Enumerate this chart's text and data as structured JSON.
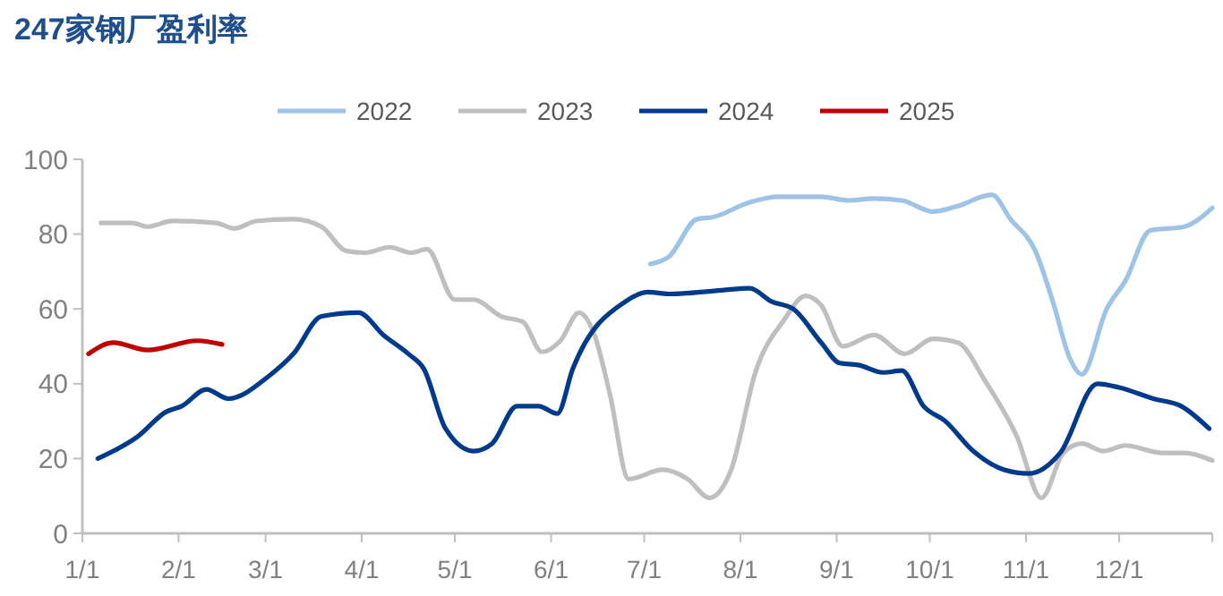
{
  "chart_data": {
    "type": "line",
    "title": "247家钢厂盈利率",
    "xlim": [
      "--01-01",
      "--12-31"
    ],
    "xticks": [
      {
        "value": "--01-01",
        "label": "1/1"
      },
      {
        "value": "--02-01",
        "label": "2/1"
      },
      {
        "value": "--03-01",
        "label": "3/1"
      },
      {
        "value": "--04-01",
        "label": "4/1"
      },
      {
        "value": "--05-01",
        "label": "5/1"
      },
      {
        "value": "--06-01",
        "label": "6/1"
      },
      {
        "value": "--07-01",
        "label": "7/1"
      },
      {
        "value": "--08-01",
        "label": "8/1"
      },
      {
        "value": "--09-01",
        "label": "9/1"
      },
      {
        "value": "--10-01",
        "label": "10/1"
      },
      {
        "value": "--11-01",
        "label": "11/1"
      },
      {
        "value": "--12-01",
        "label": "12/1"
      }
    ],
    "ylim": [
      0,
      100
    ],
    "yticks": [
      0,
      20,
      40,
      60,
      80,
      100
    ],
    "grid": false,
    "legend": "top",
    "marker": "none",
    "line_style": "solid",
    "series": [
      {
        "name": "2022",
        "color": "#9dc3e6",
        "x": [
          "--07-03",
          "--07-09",
          "--07-18",
          "--07-23",
          "--08-04",
          "--08-13",
          "--08-27",
          "--09-05",
          "--09-13",
          "--09-22",
          "--10-02",
          "--10-10",
          "--10-21",
          "--10-27",
          "--11-04",
          "--11-10",
          "--11-15",
          "--11-19",
          "--11-27",
          "--12-03",
          "--12-11",
          "--12-22",
          "--12-31"
        ],
        "values": [
          72,
          74,
          84,
          84.5,
          88.5,
          90,
          90,
          89,
          89.5,
          89,
          86,
          87.5,
          90.5,
          84,
          75.5,
          61,
          47,
          42.5,
          60,
          67.5,
          81,
          82,
          87
        ]
      },
      {
        "name": "2023",
        "color": "#bfbfbf",
        "x": [
          "--01-07",
          "--01-17",
          "--01-22",
          "--01-30",
          "--02-13",
          "--02-19",
          "--02-26",
          "--03-10",
          "--03-19",
          "--03-27",
          "--04-02",
          "--04-10",
          "--04-17",
          "--04-22",
          "--05-01",
          "--05-07",
          "--05-16",
          "--05-23",
          "--05-29",
          "--06-04",
          "--06-10",
          "--06-15",
          "--06-20",
          "--06-26",
          "--07-07",
          "--07-15",
          "--07-22",
          "--07-29",
          "--08-06",
          "--08-15",
          "--08-22",
          "--08-27",
          "--09-03",
          "--09-13",
          "--09-23",
          "--10-02",
          "--10-10",
          "--10-19",
          "--10-29",
          "--11-06",
          "--11-13",
          "--11-19",
          "--11-26",
          "--12-03",
          "--12-15",
          "--12-22",
          "--12-31"
        ],
        "values": [
          83,
          83,
          82,
          83.5,
          83,
          81.5,
          83.5,
          84,
          82,
          75.5,
          75,
          76.5,
          75,
          76,
          62.5,
          62.5,
          58,
          56.5,
          48.5,
          51.5,
          59,
          53,
          37,
          14.5,
          17,
          14.5,
          9.5,
          17,
          43.5,
          57,
          63.5,
          61,
          50,
          53,
          48,
          52,
          51,
          40.5,
          26,
          9.5,
          21.5,
          24,
          22,
          23.5,
          21.5,
          21.5,
          19.5
        ]
      },
      {
        "name": "2024",
        "color": "#003a8c",
        "x": [
          "--01-06",
          "--01-19",
          "--01-28",
          "--02-02",
          "--02-10",
          "--02-17",
          "--03-02",
          "--03-10",
          "--03-19",
          "--03-31",
          "--04-08",
          "--04-16",
          "--04-21",
          "--04-28",
          "--05-07",
          "--05-13",
          "--05-21",
          "--05-28",
          "--06-03",
          "--06-08",
          "--06-25",
          "--07-02",
          "--07-09",
          "--07-26",
          "--08-04",
          "--08-11",
          "--08-18",
          "--08-27",
          "--09-02",
          "--09-08",
          "--09-16",
          "--09-22",
          "--09-29",
          "--10-06",
          "--10-15",
          "--10-25",
          "--11-02",
          "--11-12",
          "--11-24",
          "--12-01",
          "--12-12",
          "--12-21",
          "--12-30"
        ],
        "values": [
          20,
          26,
          32.5,
          34,
          38.5,
          36,
          42,
          48,
          58,
          59,
          53,
          48,
          44,
          28,
          22,
          24,
          34,
          34,
          32,
          44,
          62,
          64.5,
          64,
          65,
          65.5,
          62,
          60,
          51,
          45.5,
          45,
          43,
          43.5,
          34,
          30,
          22,
          17,
          16,
          21.5,
          40,
          39,
          36,
          34,
          28
        ]
      },
      {
        "name": "2025",
        "color": "#c00000",
        "x": [
          "--01-03",
          "--01-11",
          "--01-22",
          "--02-07",
          "--02-15"
        ],
        "values": [
          48,
          51,
          49,
          51.5,
          50.5
        ]
      }
    ]
  }
}
